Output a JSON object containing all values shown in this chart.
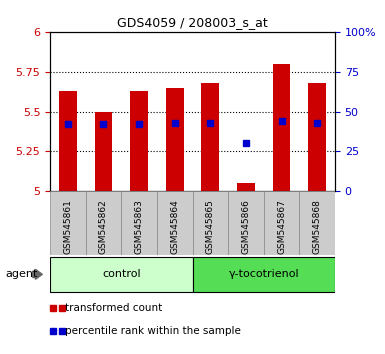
{
  "title": "GDS4059 / 208003_s_at",
  "samples": [
    "GSM545861",
    "GSM545862",
    "GSM545863",
    "GSM545864",
    "GSM545865",
    "GSM545866",
    "GSM545867",
    "GSM545868"
  ],
  "bar_heights": [
    5.63,
    5.5,
    5.63,
    5.65,
    5.68,
    5.05,
    5.8,
    5.68
  ],
  "percentile_ranks": [
    42,
    42,
    42,
    43,
    43,
    30,
    44,
    43
  ],
  "bar_bottom": 5.0,
  "ylim_left": [
    5.0,
    6.0
  ],
  "ylim_right": [
    0,
    100
  ],
  "yticks_left": [
    5.0,
    5.25,
    5.5,
    5.75,
    6.0
  ],
  "ytick_labels_left": [
    "5",
    "5.25",
    "5.5",
    "5.75",
    "6"
  ],
  "yticks_right": [
    0,
    25,
    50,
    75,
    100
  ],
  "ytick_labels_right": [
    "0",
    "25",
    "50",
    "75",
    "100%"
  ],
  "groups": [
    {
      "label": "control",
      "indices": [
        0,
        1,
        2,
        3
      ],
      "color": "#ccffcc"
    },
    {
      "label": "γ-tocotrienol",
      "indices": [
        4,
        5,
        6,
        7
      ],
      "color": "#55dd55"
    }
  ],
  "bar_color": "#cc0000",
  "percentile_color": "#0000cc",
  "agent_label": "agent",
  "legend_items": [
    {
      "color": "#cc0000",
      "label": "transformed count"
    },
    {
      "color": "#0000cc",
      "label": "percentile rank within the sample"
    }
  ],
  "plot_bg": "#ffffff",
  "tick_label_color_left": "#cc0000",
  "tick_label_color_right": "#0000cc",
  "sample_bg": "#cccccc",
  "figsize": [
    3.85,
    3.54
  ],
  "dpi": 100
}
